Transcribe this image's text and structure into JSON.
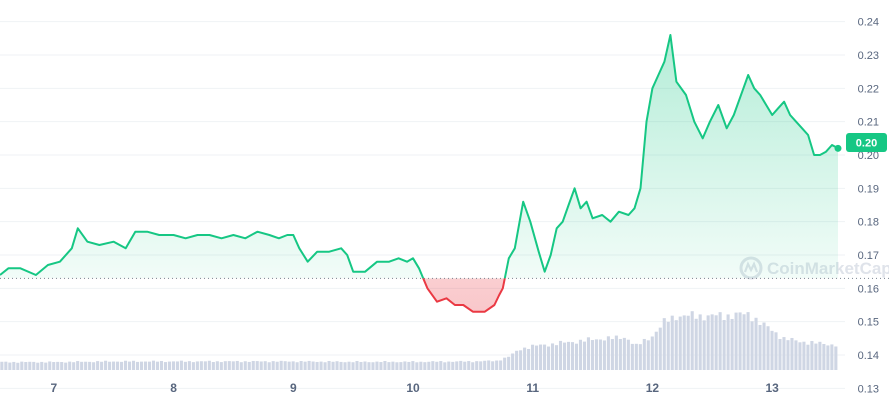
{
  "colors": {
    "up": "#16c784",
    "down": "#ea3943",
    "volume": "#cfd6e4",
    "grid": "#eff2f5",
    "text": "#58667e",
    "watermark": "#dfe3ea"
  },
  "watermark": {
    "text": "CoinMarketCap",
    "icon": "coinmarketcap-logo-icon"
  },
  "current_price_badge": "0.20",
  "chart_data": {
    "type": "area",
    "x_label_unit": "day",
    "x_range": [
      6.55,
      13.55
    ],
    "x_ticks": [
      7,
      8,
      9,
      10,
      11,
      12,
      13
    ],
    "x_tick_labels": [
      "7",
      "8",
      "9",
      "10",
      "11",
      "12",
      "13"
    ],
    "ylim": [
      0.1265,
      0.2465
    ],
    "y_ticks": [
      0.13,
      0.14,
      0.15,
      0.16,
      0.17,
      0.18,
      0.19,
      0.2,
      0.21,
      0.22,
      0.23,
      0.24
    ],
    "y_tick_labels": [
      "0.13",
      "0.14",
      "0.15",
      "0.16",
      "0.17",
      "0.18",
      "0.19",
      "0.20",
      "0.21",
      "0.22",
      "0.23",
      "0.24"
    ],
    "grid": true,
    "baseline": 0.163,
    "series": [
      {
        "values_x": [
          6.55,
          6.62,
          6.72,
          6.85,
          6.95,
          7.05,
          7.15,
          7.2,
          7.28,
          7.38,
          7.5,
          7.6,
          7.68,
          7.78,
          7.88,
          8.0,
          8.1,
          8.2,
          8.3,
          8.4,
          8.5,
          8.6,
          8.7,
          8.8,
          8.88,
          8.95,
          9.0,
          9.05,
          9.12,
          9.2,
          9.3,
          9.4,
          9.45,
          9.5,
          9.6,
          9.7,
          9.8,
          9.88,
          9.95,
          10.0,
          10.05,
          10.12,
          10.2,
          10.28,
          10.35,
          10.42,
          10.5,
          10.6,
          10.68,
          10.72,
          10.75,
          10.8,
          10.85,
          10.88,
          10.92,
          10.98,
          11.05,
          11.1,
          11.15,
          11.2,
          11.25,
          11.3,
          11.35,
          11.4,
          11.45,
          11.5,
          11.58,
          11.65,
          11.72,
          11.8,
          11.85,
          11.9,
          11.95,
          12.0,
          12.05,
          12.1,
          12.15,
          12.2,
          12.28,
          12.35,
          12.42,
          12.48,
          12.55,
          12.62,
          12.68,
          12.75,
          12.8,
          12.85,
          12.9,
          12.95,
          13.0,
          13.05,
          13.1,
          13.15,
          13.2,
          13.25,
          13.3,
          13.35,
          13.4,
          13.45,
          13.5,
          13.55
        ],
        "values_y": [
          0.164,
          0.166,
          0.166,
          0.164,
          0.167,
          0.168,
          0.172,
          0.178,
          0.174,
          0.173,
          0.174,
          0.172,
          0.177,
          0.177,
          0.176,
          0.176,
          0.175,
          0.176,
          0.176,
          0.175,
          0.176,
          0.175,
          0.177,
          0.176,
          0.175,
          0.176,
          0.176,
          0.172,
          0.168,
          0.171,
          0.171,
          0.172,
          0.17,
          0.165,
          0.165,
          0.168,
          0.168,
          0.169,
          0.168,
          0.169,
          0.166,
          0.16,
          0.156,
          0.157,
          0.155,
          0.155,
          0.153,
          0.153,
          0.155,
          0.158,
          0.16,
          0.169,
          0.172,
          0.178,
          0.186,
          0.18,
          0.171,
          0.165,
          0.17,
          0.178,
          0.18,
          0.185,
          0.19,
          0.184,
          0.186,
          0.181,
          0.182,
          0.18,
          0.183,
          0.182,
          0.184,
          0.19,
          0.21,
          0.22,
          0.224,
          0.228,
          0.236,
          0.222,
          0.218,
          0.21,
          0.205,
          0.21,
          0.215,
          0.208,
          0.212,
          0.219,
          0.224,
          0.22,
          0.218,
          0.215,
          0.212,
          0.214,
          0.216,
          0.212,
          0.21,
          0.208,
          0.206,
          0.2,
          0.2,
          0.201,
          0.203,
          0.202
        ]
      }
    ],
    "volume": {
      "x": [
        6.55,
        7.0,
        7.5,
        8.0,
        8.5,
        9.0,
        9.5,
        10.0,
        10.5,
        10.7,
        10.8,
        10.9,
        11.0,
        11.2,
        11.4,
        11.6,
        11.7,
        11.78,
        11.82,
        11.86,
        11.9,
        12.0,
        12.1,
        12.2,
        12.4,
        12.6,
        12.7,
        12.8,
        12.85,
        12.9,
        13.0,
        13.1,
        13.2,
        13.3,
        13.4,
        13.55
      ],
      "relative": [
        0.06,
        0.06,
        0.065,
        0.065,
        0.065,
        0.065,
        0.062,
        0.062,
        0.065,
        0.07,
        0.1,
        0.16,
        0.18,
        0.2,
        0.22,
        0.24,
        0.24,
        0.25,
        0.22,
        0.18,
        0.2,
        0.26,
        0.36,
        0.41,
        0.41,
        0.41,
        0.42,
        0.42,
        0.4,
        0.36,
        0.3,
        0.24,
        0.22,
        0.21,
        0.2,
        0.19
      ]
    }
  }
}
